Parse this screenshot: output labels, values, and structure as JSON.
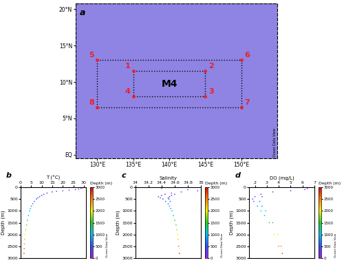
{
  "chart_data": [
    {
      "type": "map",
      "title": "a",
      "color": "#e8202a",
      "xlim": [
        127,
        155
      ],
      "ylim": [
        -0.5,
        20.8
      ],
      "xticks": [
        {
          "value": 130,
          "label": "130°E"
        },
        {
          "value": 135,
          "label": "135°E"
        },
        {
          "value": 140,
          "label": "140°E"
        },
        {
          "value": 145,
          "label": "145°E"
        },
        {
          "value": 150,
          "label": "150°E"
        }
      ],
      "yticks": [
        {
          "value": 0,
          "label": "EQ"
        },
        {
          "value": 5,
          "label": "5°N"
        },
        {
          "value": 10,
          "label": "10°N"
        },
        {
          "value": 15,
          "label": "15°N"
        },
        {
          "value": 20,
          "label": "20°N"
        }
      ],
      "x": [
        135,
        145,
        145,
        135,
        130,
        150,
        150,
        130
      ],
      "y": [
        11.5,
        11.5,
        8,
        8,
        13,
        13,
        6.5,
        6.5
      ],
      "point_labels": [
        "1",
        "2",
        "3",
        "4",
        "5",
        "6",
        "7",
        "8"
      ],
      "annotations": [
        "M4",
        "Ocean Data View"
      ]
    },
    {
      "type": "scatter",
      "title": "b",
      "xlabel": "T (°C)",
      "ylabel": "Depth (m)",
      "xlim": [
        0,
        31
      ],
      "xticks": [
        0,
        5,
        10,
        15,
        20,
        25,
        30
      ],
      "ylim": [
        3000,
        0
      ],
      "yticks": [
        0,
        500,
        1000,
        1500,
        2000,
        2500,
        3000
      ],
      "x": [
        29.5,
        29.3,
        28.6,
        27.5,
        26,
        23,
        20,
        17,
        15,
        12.5,
        11,
        10,
        9,
        8.2,
        7.5,
        6.5,
        5.8,
        5.1,
        4.6,
        4.3,
        3.7,
        3.2,
        2.8,
        2.4,
        2.1,
        1.9,
        1.8,
        1.7,
        1.6
      ],
      "y": [
        0,
        25,
        50,
        75,
        100,
        125,
        150,
        175,
        200,
        250,
        300,
        350,
        400,
        450,
        500,
        600,
        700,
        800,
        900,
        1000,
        1200,
        1400,
        1600,
        1800,
        2000,
        2200,
        2400,
        2600,
        2800
      ],
      "colorbar": {
        "label": "Depth (m)",
        "range": [
          0,
          3000
        ],
        "ticks": [
          0,
          500,
          1000,
          1500,
          2000,
          2500,
          3000
        ]
      },
      "annotations": [
        "Ocean Data View"
      ]
    },
    {
      "type": "scatter",
      "title": "c",
      "xlabel": "Salinity",
      "ylabel": "Depth (m)",
      "xlim": [
        34,
        35
      ],
      "xticks": [
        34,
        34.2,
        34.4,
        34.6,
        34.8,
        35
      ],
      "ylim": [
        3000,
        0
      ],
      "yticks": [
        0,
        500,
        1000,
        1500,
        2000,
        2500,
        3000
      ],
      "x": [
        34.3,
        34.4,
        34.8,
        34.95,
        34.7,
        34.55,
        34.45,
        34.4,
        34.35,
        34.38,
        34.42,
        34.46,
        34.5,
        34.52,
        34.54,
        34.56,
        34.58,
        34.6,
        34.62,
        34.63,
        34.64,
        34.65,
        34.66,
        34.67,
        34.6,
        34.55,
        34.52,
        34.5,
        34.51,
        34.53
      ],
      "y": [
        0,
        50,
        100,
        150,
        200,
        250,
        300,
        350,
        400,
        450,
        500,
        600,
        700,
        800,
        900,
        1000,
        1200,
        1400,
        1600,
        1800,
        2000,
        2200,
        2500,
        2800,
        300,
        350,
        400,
        450,
        500,
        600
      ],
      "colorbar": {
        "label": "Depth (m)",
        "range": [
          0,
          3000
        ],
        "ticks": [
          0,
          500,
          1000,
          1500,
          2000,
          2500,
          3000
        ]
      },
      "annotations": [
        "Ocean Data View"
      ]
    },
    {
      "type": "scatter",
      "title": "d",
      "xlabel": "DO (mg/L)",
      "ylabel": "Depth (m)",
      "xlim": [
        1.5,
        7
      ],
      "xticks": [
        2,
        3,
        4,
        5,
        6,
        7
      ],
      "ylim": [
        3000,
        0
      ],
      "yticks": [
        0,
        500,
        1000,
        1500,
        2000,
        2500,
        3000
      ],
      "x": [
        6.5,
        6.4,
        6.2,
        5,
        3.5,
        2.5,
        2,
        1.8,
        1.9,
        2.2,
        2.5,
        2.8,
        3.2,
        3.6,
        4,
        4.3,
        2.6,
        2.4,
        2.6,
        2.9,
        3.5,
        3.9,
        4.2
      ],
      "y": [
        0,
        50,
        100,
        150,
        200,
        300,
        400,
        500,
        600,
        800,
        1000,
        1200,
        1500,
        2000,
        2500,
        2800,
        400,
        600,
        800,
        1000,
        1500,
        2000,
        2500
      ],
      "colorbar": {
        "label": "Depth (m)",
        "range": [
          0,
          3000
        ],
        "ticks": [
          0,
          500,
          1000,
          1500,
          2000,
          2500,
          3000
        ]
      },
      "annotations": [
        "Ocean Data View"
      ]
    }
  ]
}
